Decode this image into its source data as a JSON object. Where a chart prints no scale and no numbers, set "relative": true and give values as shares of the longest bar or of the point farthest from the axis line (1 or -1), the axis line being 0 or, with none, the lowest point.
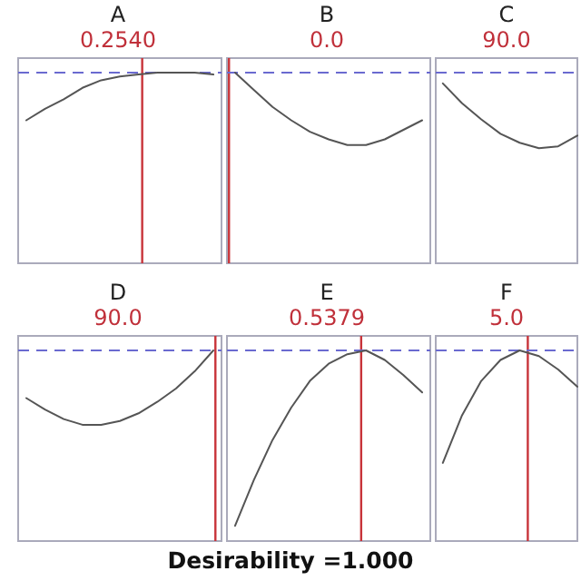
{
  "chart_data": [
    {
      "type": "line",
      "title": "A",
      "subtitle": "0.2540",
      "relative": true,
      "categories": [
        null,
        null,
        null,
        null,
        null,
        null,
        null,
        null,
        null,
        null,
        null
      ],
      "series": [
        {
          "color": "#555555",
          "values": [
            0.75,
            0.81,
            0.86,
            0.92,
            0.96,
            0.98,
            0.99,
            1.0,
            1.0,
            1.0,
            0.99
          ]
        }
      ],
      "ref_lines": [
        {
          "axis": "y",
          "value": 1,
          "color": "#6a6ad0",
          "line_style": "dashed"
        }
      ]
    },
    {
      "type": "line",
      "title": "B",
      "subtitle": "0.0",
      "relative": true,
      "categories": [
        null,
        null,
        null,
        null,
        null,
        null,
        null,
        null,
        null,
        null,
        null
      ],
      "series": [
        {
          "color": "#555555",
          "values": [
            1.0,
            0.91,
            0.82,
            0.75,
            0.69,
            0.65,
            0.62,
            0.62,
            0.65,
            0.7,
            0.75
          ]
        }
      ],
      "ref_lines": [
        {
          "axis": "y",
          "value": 1,
          "color": "#6a6ad0",
          "line_style": "dashed"
        }
      ]
    },
    {
      "type": "line",
      "title": "C",
      "subtitle": "90.0",
      "relative": true,
      "categories": [
        null,
        null,
        null,
        null,
        null,
        null,
        null,
        null
      ],
      "series": [
        {
          "color": "#555555",
          "values": [
            1.0,
            0.89,
            0.8,
            0.72,
            0.67,
            0.64,
            0.65,
            0.71
          ]
        }
      ],
      "ref_lines": [
        {
          "axis": "y",
          "value": 1.06,
          "color": "#6a6ad0",
          "line_style": "dashed"
        }
      ]
    },
    {
      "type": "line",
      "title": "D",
      "subtitle": "90.0",
      "relative": true,
      "categories": [
        null,
        null,
        null,
        null,
        null,
        null,
        null,
        null,
        null,
        null,
        null
      ],
      "series": [
        {
          "color": "#555555",
          "values": [
            0.75,
            0.69,
            0.64,
            0.61,
            0.61,
            0.63,
            0.67,
            0.73,
            0.8,
            0.89,
            1.0
          ]
        }
      ],
      "ref_lines": [
        {
          "axis": "y",
          "value": 1,
          "color": "#6a6ad0",
          "line_style": "dashed"
        }
      ]
    },
    {
      "type": "line",
      "title": "E",
      "subtitle": "0.5379",
      "relative": true,
      "categories": [
        null,
        null,
        null,
        null,
        null,
        null,
        null,
        null,
        null,
        null,
        null
      ],
      "series": [
        {
          "color": "#555555",
          "values": [
            0.08,
            0.32,
            0.53,
            0.7,
            0.84,
            0.93,
            0.98,
            1.0,
            0.95,
            0.87,
            0.78
          ]
        }
      ],
      "ref_lines": [
        {
          "axis": "y",
          "value": 1,
          "color": "#6a6ad0",
          "line_style": "dashed"
        }
      ],
      "annotations": [
        "Desirability =1.000"
      ]
    },
    {
      "type": "line",
      "title": "F",
      "subtitle": "5.0",
      "relative": true,
      "categories": [
        null,
        null,
        null,
        null,
        null,
        null,
        null,
        null
      ],
      "series": [
        {
          "color": "#555555",
          "values": [
            0.41,
            0.66,
            0.84,
            0.95,
            1.0,
            0.97,
            0.9,
            0.81
          ]
        }
      ],
      "ref_lines": [
        {
          "axis": "y",
          "value": 1,
          "color": "#6a6ad0",
          "line_style": "dashed"
        }
      ]
    }
  ]
}
